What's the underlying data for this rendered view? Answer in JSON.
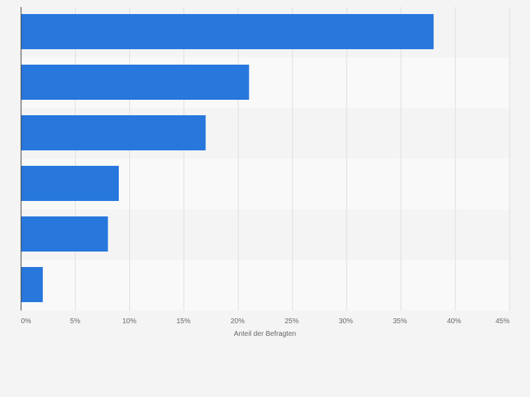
{
  "chart_data": {
    "type": "bar",
    "orientation": "horizontal",
    "categories": [
      "",
      "",
      "",
      "",
      "",
      ""
    ],
    "values": [
      38,
      21,
      17,
      9,
      8,
      2
    ],
    "xlabel": "Anteil der Befragten",
    "x_ticks": [
      "0%",
      "5%",
      "10%",
      "15%",
      "20%",
      "25%",
      "30%",
      "35%",
      "40%",
      "45%"
    ],
    "xlim": [
      0,
      45
    ],
    "grid": true,
    "legend": "none",
    "colors": {
      "bar": "#2777dd",
      "background": "#f4f4f4",
      "band_light": "#f9f9f9",
      "band_dark": "#f4f4f4",
      "grid": "#dddddd",
      "axis_text": "#666666"
    }
  }
}
